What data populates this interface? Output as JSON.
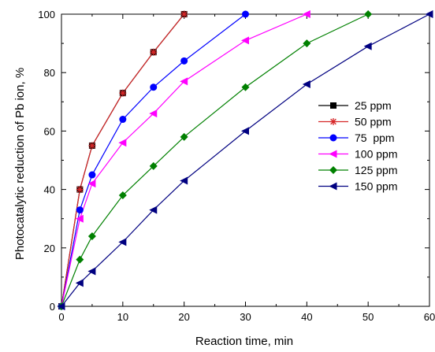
{
  "chart_data": {
    "type": "line",
    "xlabel": "Reaction time, min",
    "ylabel": "Photocatalytic reduction of Pb ion, %",
    "xlim": [
      0,
      60
    ],
    "ylim": [
      0,
      100
    ],
    "xticks": [
      0,
      10,
      20,
      30,
      40,
      50,
      60
    ],
    "yticks": [
      0,
      20,
      40,
      60,
      80,
      100
    ],
    "grid": false,
    "legend_position": "right",
    "series": [
      {
        "name": "25 ppm",
        "color": "#000000",
        "marker": "square",
        "x": [
          0,
          3,
          5,
          10,
          15,
          20
        ],
        "y": [
          0,
          40,
          55,
          73,
          87,
          100
        ]
      },
      {
        "name": "50 ppm",
        "color": "#d62728",
        "marker": "asterisk",
        "x": [
          0,
          3,
          5,
          10,
          15,
          20
        ],
        "y": [
          0,
          40,
          55,
          73,
          87,
          100
        ]
      },
      {
        "name": "75  ppm",
        "color": "#0000ff",
        "marker": "circle",
        "x": [
          0,
          3,
          5,
          10,
          15,
          20,
          30
        ],
        "y": [
          0,
          33,
          45,
          64,
          75,
          84,
          100
        ]
      },
      {
        "name": "100 ppm",
        "color": "#ff00ff",
        "marker": "triangle-left",
        "x": [
          0,
          3,
          5,
          10,
          15,
          20,
          30,
          40
        ],
        "y": [
          0,
          30,
          42,
          56,
          66,
          77,
          91,
          100
        ]
      },
      {
        "name": "125 ppm",
        "color": "#008000",
        "marker": "diamond",
        "x": [
          0,
          3,
          5,
          10,
          15,
          20,
          30,
          40,
          50
        ],
        "y": [
          0,
          16,
          24,
          38,
          48,
          58,
          75,
          90,
          100
        ]
      },
      {
        "name": "150 ppm",
        "color": "#000080",
        "marker": "triangle-left",
        "x": [
          0,
          3,
          5,
          10,
          15,
          20,
          30,
          40,
          50,
          60
        ],
        "y": [
          0,
          8,
          12,
          22,
          33,
          43,
          60,
          76,
          89,
          100
        ]
      }
    ]
  }
}
